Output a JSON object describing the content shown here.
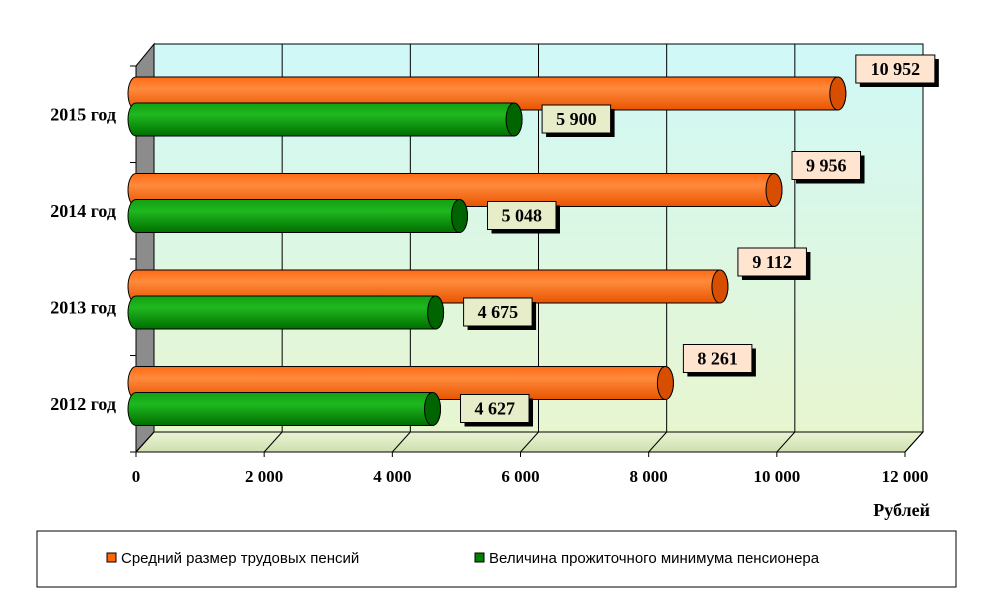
{
  "chart_data": {
    "type": "bar",
    "orientation": "horizontal",
    "categories": [
      "2012 год",
      "2013 год",
      "2014 год",
      "2015 год"
    ],
    "series": [
      {
        "name": "Средний размер трудовых  пенсий",
        "color": "#FF6600",
        "values": [
          8261,
          9112,
          9956,
          10952
        ],
        "labels": [
          "8 261",
          "9 112",
          "9 956",
          "10 952"
        ]
      },
      {
        "name": "Величина прожиточного минимума пенсионера",
        "color": "#008000",
        "values": [
          4627,
          4675,
          5048,
          5900
        ],
        "labels": [
          "4 627",
          "4 675",
          "5 048",
          "5 900"
        ]
      }
    ],
    "xlim": [
      0,
      12000
    ],
    "xticks": [
      0,
      2000,
      4000,
      6000,
      8000,
      10000,
      12000
    ],
    "xtick_labels": [
      "0",
      "2 000",
      "4 000",
      "6 000",
      "8 000",
      "10 000",
      "12 000"
    ],
    "xlabel": "Рублей",
    "ylabel": "",
    "title": "",
    "grid": true,
    "legend_position": "bottom",
    "label_colors": {
      "series_0_box": "#FFE4D0",
      "series_1_box": "#E6EDC8"
    }
  }
}
